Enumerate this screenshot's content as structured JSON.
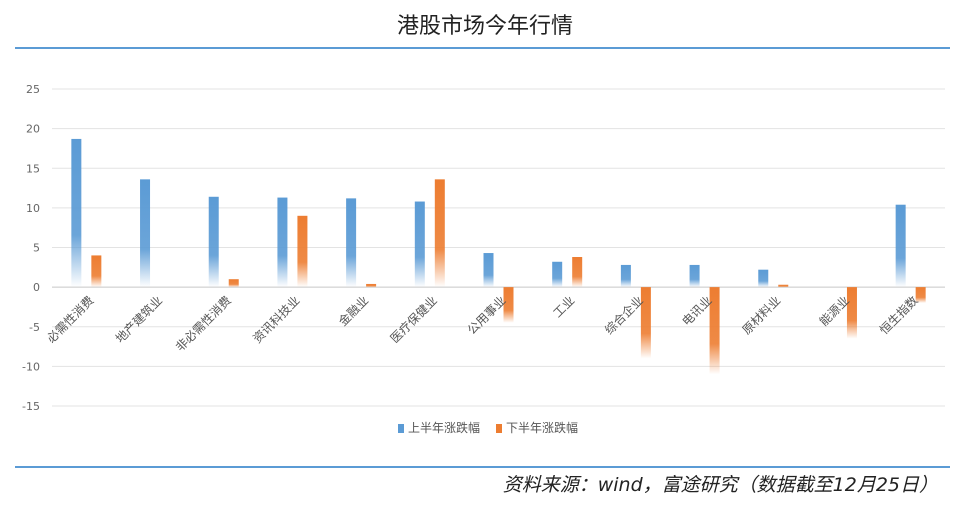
{
  "title": "港股市场今年行情",
  "source": "资料来源：wind，富途研究（数据截至12月25日）",
  "chart_data": {
    "type": "bar",
    "title": "港股市场今年行情",
    "categories": [
      "必需性消费",
      "地产建筑业",
      "非必需性消费",
      "资讯科技业",
      "金融业",
      "医疗保健业",
      "公用事业",
      "工业",
      "综合企业",
      "电讯业",
      "原材料业",
      "能源业",
      "恒生指数"
    ],
    "series": [
      {
        "name": "上半年涨跌幅",
        "color": "#5b9bd5",
        "values": [
          18.7,
          13.6,
          11.4,
          11.3,
          11.2,
          10.8,
          4.3,
          3.2,
          2.8,
          2.8,
          2.2,
          null,
          10.4
        ]
      },
      {
        "name": "下半年涨跌幅",
        "color": "#ed7d31",
        "values": [
          4.0,
          null,
          1.0,
          9.0,
          0.4,
          13.6,
          -4.5,
          3.8,
          -9.0,
          -11.0,
          0.3,
          -6.5,
          -2.0
        ]
      }
    ],
    "ylim": [
      -15,
      25
    ],
    "yticks": [
      25,
      20,
      15,
      10,
      5,
      0,
      -5,
      -10,
      -15
    ],
    "grid": true,
    "legend_position": "bottom"
  }
}
